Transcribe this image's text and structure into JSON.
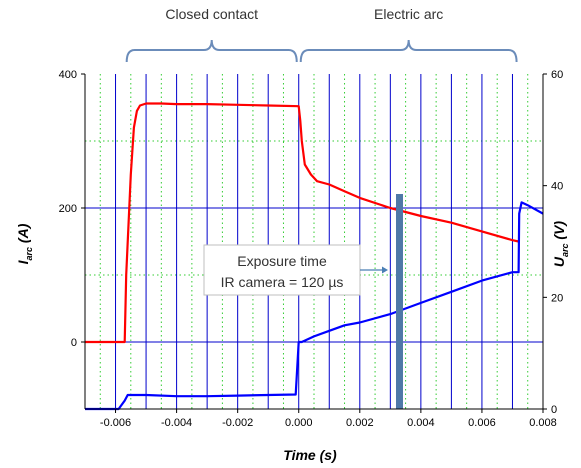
{
  "chart_data": {
    "type": "line",
    "xlabel": "Time (s)",
    "ylabel_left": "I_arc (A)",
    "ylabel_right": "U_arc (V)",
    "ylabel_left_main": "I",
    "ylabel_left_sub": "arc",
    "ylabel_left_unit": "(A)",
    "ylabel_right_main": "U",
    "ylabel_right_sub": "arc",
    "ylabel_right_unit": "(V)",
    "xlim": [
      -0.007,
      0.008
    ],
    "ylim_left": [
      -100,
      400
    ],
    "ylim_right": [
      0,
      60
    ],
    "x_ticks": [
      "-0.006",
      "-0.004",
      "-0.002",
      "0.000",
      "0.002",
      "0.004",
      "0.006",
      "0.008"
    ],
    "y_ticks_left": [
      "0",
      "200",
      "400"
    ],
    "y_ticks_right": [
      "0",
      "20",
      "40",
      "60"
    ],
    "grid": true,
    "brackets": [
      {
        "label": "Closed contact",
        "x_start": -0.0057,
        "x_end": 0.0
      },
      {
        "label": "Electric arc",
        "x_start": 0.0,
        "x_end": 0.0072
      }
    ],
    "annotation": {
      "line1": "Exposure time",
      "line2": "IR camera = 120 µs",
      "exposure_x": 0.0033
    },
    "series": [
      {
        "axis": "left",
        "color": "#ff0000",
        "x": [
          -0.007,
          -0.0057,
          -0.00565,
          -0.0055,
          -0.0054,
          -0.0053,
          -0.0052,
          -0.005,
          -0.0045,
          -0.004,
          -0.003,
          -0.002,
          -0.001,
          0.0,
          5e-05,
          0.0001,
          0.0002,
          0.0004,
          0.0006,
          0.001,
          0.0015,
          0.002,
          0.003,
          0.004,
          0.005,
          0.006,
          0.007,
          0.0072
        ],
        "y": [
          0,
          0,
          100,
          250,
          320,
          345,
          353,
          356,
          356,
          355,
          355,
          354,
          353,
          352,
          330,
          300,
          265,
          250,
          240,
          235,
          225,
          215,
          200,
          188,
          178,
          165,
          152,
          150
        ]
      },
      {
        "axis": "right",
        "color": "#0000ff",
        "x": [
          -0.007,
          -0.0059,
          -0.0057,
          -0.0056,
          -0.005,
          -0.004,
          -0.003,
          -0.002,
          -0.001,
          -0.0001,
          0.0,
          0.0001,
          0.0005,
          0.001,
          0.0015,
          0.002,
          0.003,
          0.004,
          0.005,
          0.006,
          0.007,
          0.0072,
          0.00722,
          0.0073,
          0.0075,
          0.008
        ],
        "y": [
          0,
          0,
          1.5,
          2.5,
          2.5,
          2.3,
          2.3,
          2.4,
          2.5,
          2.6,
          12,
          12,
          13,
          14,
          15,
          15.5,
          17,
          19,
          21,
          23,
          24.5,
          24.5,
          35,
          37,
          36.5,
          35
        ]
      }
    ]
  }
}
